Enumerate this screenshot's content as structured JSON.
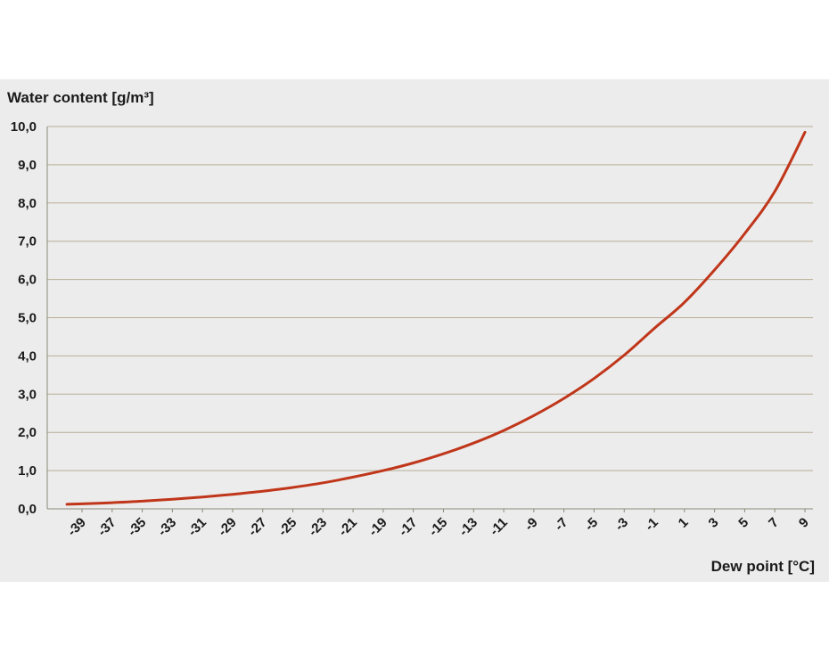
{
  "chart_data": {
    "type": "line",
    "title": "",
    "ylabel": "Water content [g/m³]",
    "xlabel": "Dew point [°C]",
    "ylim": [
      0,
      10
    ],
    "xlim": [
      -41,
      10
    ],
    "y_ticks": [
      "0,0",
      "1,0",
      "2,0",
      "3,0",
      "4,0",
      "5,0",
      "6,0",
      "7,0",
      "8,0",
      "9,0",
      "10,0"
    ],
    "y_tick_values": [
      0,
      1,
      2,
      3,
      4,
      5,
      6,
      7,
      8,
      9,
      10
    ],
    "x_ticks": [
      "-39",
      "-37",
      "-35",
      "-33",
      "-31",
      "-29",
      "-27",
      "-25",
      "-23",
      "-21",
      "-19",
      "-17",
      "-15",
      "-13",
      "-11",
      "-9",
      "-7",
      "-5",
      "-3",
      "-1",
      "1",
      "3",
      "5",
      "7",
      "9"
    ],
    "x_tick_values": [
      -39,
      -37,
      -35,
      -33,
      -31,
      -29,
      -27,
      -25,
      -23,
      -21,
      -19,
      -17,
      -15,
      -13,
      -11,
      -9,
      -7,
      -5,
      -3,
      -1,
      1,
      3,
      5,
      7,
      9
    ],
    "grid": "horizontal",
    "series": [
      {
        "color": "#c0361a",
        "x": [
          -40,
          -39,
          -37,
          -35,
          -33,
          -31,
          -29,
          -27,
          -25,
          -23,
          -21,
          -19,
          -17,
          -15,
          -13,
          -11,
          -9,
          -7,
          -5,
          -3,
          -1,
          1,
          3,
          5,
          7,
          9
        ],
        "y": [
          0.12,
          0.13,
          0.16,
          0.2,
          0.25,
          0.31,
          0.38,
          0.46,
          0.56,
          0.68,
          0.83,
          1.0,
          1.2,
          1.44,
          1.72,
          2.05,
          2.44,
          2.89,
          3.41,
          4.02,
          4.72,
          5.4,
          6.25,
          7.2,
          8.3,
          9.85
        ]
      }
    ]
  }
}
